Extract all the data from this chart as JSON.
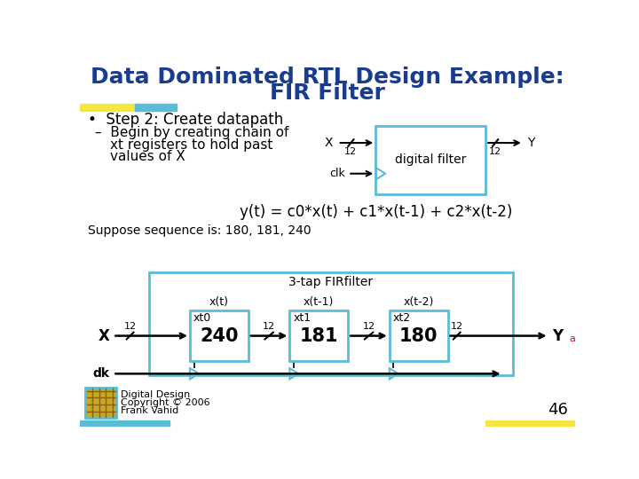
{
  "title_line1": "Data Dominated RTL Design Example:",
  "title_line2": "FIR Filter",
  "title_color": "#1a3c8f",
  "title_fontsize": 18,
  "bullet1": "Step 2: Create datapath",
  "sub_line1": "–  Begin by creating chain of",
  "sub_line2": "xt registers to hold past",
  "sub_line3": "values of X",
  "equation": "y(t) = c0*x(t) + c1*x(t-1) + c2*x(t-2)",
  "suppose_text": "Suppose sequence is: 180, 181, 240",
  "fir_label": "3-tap FIRfilter",
  "reg_labels": [
    "x(t)",
    "x(t-1)",
    "x(t-2)"
  ],
  "reg_names": [
    "xt0",
    "xt1",
    "xt2"
  ],
  "reg_values": [
    "240",
    "181",
    "180"
  ],
  "x_input": "X",
  "y_output": "Y",
  "clk_label": "clk",
  "dk_label": "dk",
  "digital_filter_label": "digital filter",
  "page_number": "46",
  "background_color": "#ffffff",
  "box_color": "#5bbcd6",
  "title_bar_yellow": "#f5e642",
  "title_bar_blue": "#5bbcd6",
  "footer_bar_blue": "#5bbcd6",
  "footer_bar_yellow": "#f5e642",
  "icon_color": "#c8a820",
  "text_color": "#000000"
}
